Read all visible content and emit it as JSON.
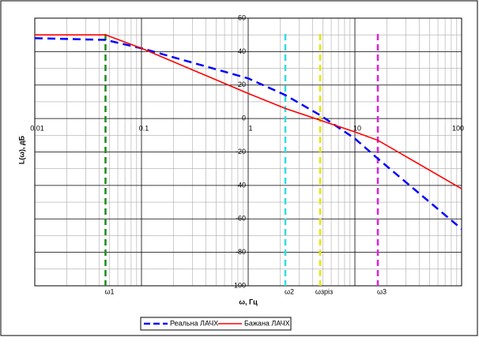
{
  "chart_data": {
    "type": "line",
    "xlabel": "ω, Гц",
    "ylabel": "L(ω), дБ",
    "log_x": true,
    "grid": true,
    "x": [
      0.01,
      0.046,
      0.1,
      1,
      2.23,
      4.72,
      10,
      16.4,
      100
    ],
    "series": [
      {
        "name": "Реальна ЛАЧХ",
        "color": "#0000ff",
        "dashed": true,
        "values": [
          48,
          47,
          42,
          24,
          14,
          2,
          -12,
          -24,
          -66
        ]
      },
      {
        "name": "Бажана ЛАЧХ",
        "color": "#ff0000",
        "dashed": false,
        "values": [
          50,
          50,
          42,
          15,
          6,
          -1,
          -8,
          -13,
          -42
        ]
      }
    ],
    "markers": [
      {
        "label": "ω1",
        "value": 0.046,
        "color": "#1a8a1a"
      },
      {
        "label": "ω2",
        "value": 2.23,
        "color": "#33dddd"
      },
      {
        "label": "ωзріз",
        "value": 4.72,
        "color": "#e6e600"
      },
      {
        "label": "ω3",
        "value": 16.4,
        "color": "#dd22dd"
      }
    ],
    "xlim": [
      0.01,
      100
    ],
    "xticks": [
      0.01,
      0.1,
      1,
      10,
      100
    ],
    "ylim": [
      -100,
      60
    ],
    "yticks": [
      -100,
      -80,
      -60,
      -40,
      -20,
      0,
      20,
      40,
      60
    ]
  }
}
